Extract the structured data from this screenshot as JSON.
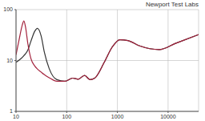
{
  "chart_data": {
    "type": "line",
    "title": "Newport Test Labs",
    "log": true,
    "grid": true,
    "x": [
      10,
      11.5,
      13.3,
      14.3,
      15.4,
      17.1,
      19.7,
      23.6,
      26.4,
      31.4,
      36,
      45,
      64,
      92,
      131,
      169,
      225,
      288,
      357,
      550,
      785,
      1120,
      1610,
      2750,
      6700,
      13700,
      40000
    ],
    "xlim": [
      10,
      40000
    ],
    "xticks": [
      10,
      100,
      1000,
      10000
    ],
    "ylim": [
      1,
      100
    ],
    "yticks": [
      1,
      10,
      100
    ],
    "series": [
      {
        "color": "#333333",
        "values": [
          9.2,
          10.2,
          11.5,
          12.5,
          13.5,
          16,
          24,
          38,
          42.7,
          30,
          15,
          7,
          4.2,
          3.9,
          4.5,
          4.3,
          5.1,
          4.2,
          4.5,
          9.2,
          18.2,
          25.6,
          24.7,
          19.4,
          16.4,
          21.5,
          32.3
        ]
      },
      {
        "color": "#a3223c",
        "values": [
          12.9,
          25.5,
          50,
          60,
          45.5,
          21.6,
          10.9,
          7.7,
          6.8,
          5.9,
          5.3,
          4.6,
          3.9,
          3.9,
          4.5,
          4.3,
          5.1,
          4.2,
          4.5,
          9.2,
          18.2,
          25.6,
          24.7,
          19.4,
          16.4,
          21.5,
          32.3
        ]
      }
    ]
  }
}
